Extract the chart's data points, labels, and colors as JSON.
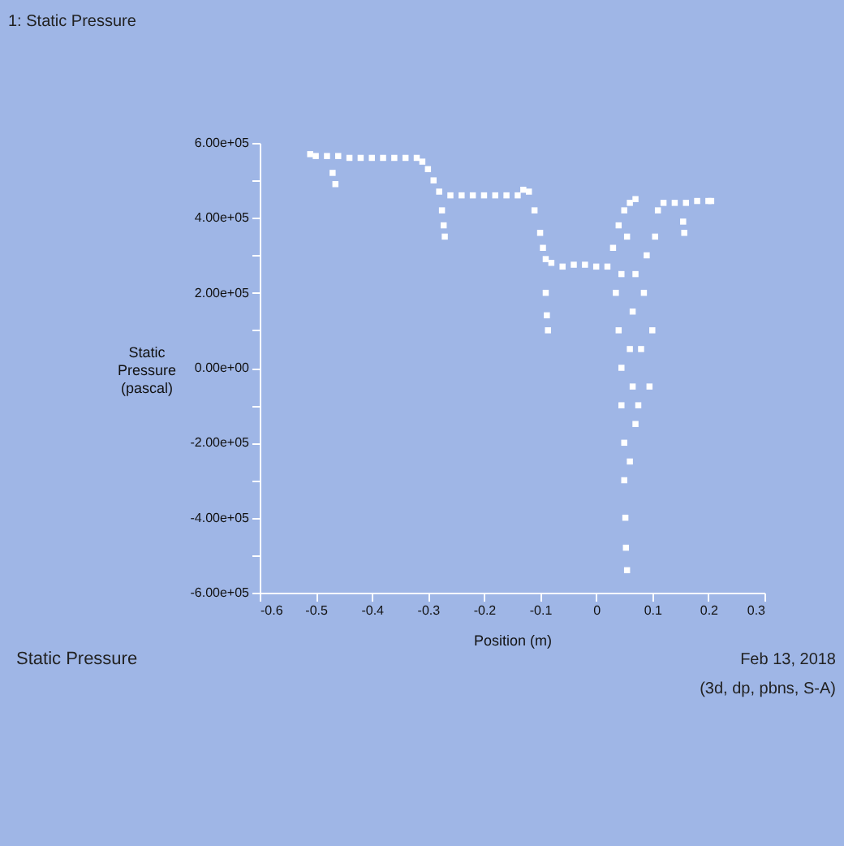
{
  "chart_data": {
    "type": "scatter",
    "title": "Static Pressure",
    "xlabel": "Position (m)",
    "ylabel": "Static Pressure (pascal)",
    "annotations": [
      "1: Static Pressure",
      "Feb 13, 2018",
      "(3d, dp, pbns, S-A)"
    ],
    "xlim": [
      -0.6,
      0.3
    ],
    "xticks": [
      -0.6,
      -0.5,
      -0.4,
      -0.3,
      -0.2,
      -0.1,
      0,
      0.1,
      0.2,
      0.3
    ],
    "ylim": [
      -600000,
      600000
    ],
    "yticks": [
      {
        "value": 600000,
        "label": "6.00e+05"
      },
      {
        "value": 500000,
        "label": null
      },
      {
        "value": 400000,
        "label": "4.00e+05"
      },
      {
        "value": 300000,
        "label": null
      },
      {
        "value": 200000,
        "label": "2.00e+05"
      },
      {
        "value": 100000,
        "label": null
      },
      {
        "value": 0,
        "label": "0.00e+00"
      },
      {
        "value": -100000,
        "label": null
      },
      {
        "value": -200000,
        "label": "-2.00e+05"
      },
      {
        "value": -300000,
        "label": null
      },
      {
        "value": -400000,
        "label": "-4.00e+05"
      },
      {
        "value": -500000,
        "label": null
      },
      {
        "value": -600000,
        "label": "-6.00e+05"
      }
    ],
    "grid": false,
    "marker": "square",
    "series": [
      {
        "color": "#ffffff",
        "x": [
          -0.51,
          -0.5,
          -0.48,
          -0.47,
          -0.465,
          -0.46,
          -0.44,
          -0.42,
          -0.4,
          -0.38,
          -0.36,
          -0.34,
          -0.32,
          -0.31,
          -0.3,
          -0.29,
          -0.28,
          -0.275,
          -0.272,
          -0.27,
          -0.26,
          -0.24,
          -0.22,
          -0.2,
          -0.18,
          -0.16,
          -0.14,
          -0.13,
          -0.12,
          -0.11,
          -0.1,
          -0.095,
          -0.09,
          -0.09,
          -0.088,
          -0.086,
          -0.08,
          -0.06,
          -0.04,
          -0.02,
          0,
          0.02,
          0.03,
          0.04,
          0.05,
          0.06,
          0.07,
          0.035,
          0.04,
          0.045,
          0.045,
          0.05,
          0.05,
          0.052,
          0.053,
          0.055,
          0.06,
          0.06,
          0.065,
          0.07,
          0.075,
          0.08,
          0.085,
          0.09,
          0.095,
          0.1,
          0.105,
          0.11,
          0.045,
          0.055,
          0.065,
          0.07,
          0.12,
          0.14,
          0.155,
          0.157,
          0.16,
          0.18,
          0.2,
          0.205
        ],
        "values": [
          570000,
          565000,
          565000,
          520000,
          490000,
          565000,
          560000,
          560000,
          560000,
          560000,
          560000,
          560000,
          560000,
          550000,
          530000,
          500000,
          470000,
          420000,
          380000,
          350000,
          460000,
          460000,
          460000,
          460000,
          460000,
          460000,
          460000,
          475000,
          470000,
          420000,
          360000,
          320000,
          290000,
          200000,
          140000,
          100000,
          280000,
          270000,
          275000,
          275000,
          270000,
          270000,
          320000,
          380000,
          420000,
          440000,
          450000,
          200000,
          100000,
          0,
          -100000,
          -200000,
          -300000,
          -400000,
          -480000,
          -540000,
          -250000,
          50000,
          150000,
          250000,
          -100000,
          50000,
          200000,
          300000,
          -50000,
          100000,
          350000,
          420000,
          250000,
          350000,
          -50000,
          -150000,
          440000,
          440000,
          390000,
          360000,
          440000,
          445000,
          445000,
          445000
        ]
      }
    ]
  }
}
